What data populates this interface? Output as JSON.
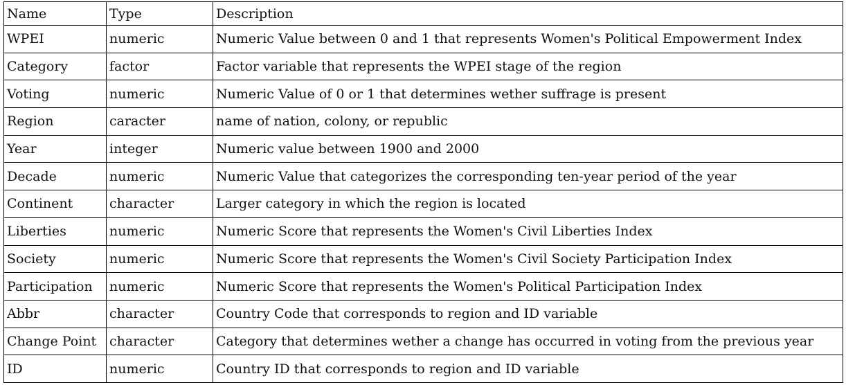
{
  "table": {
    "headers": [
      "Name",
      "Type",
      "Description"
    ],
    "rows": [
      [
        "WPEI",
        "numeric",
        "Numeric Value between 0 and 1 that represents Women's Political Empowerment Index"
      ],
      [
        "Category",
        "factor",
        "Factor variable that represents the WPEI stage of the region"
      ],
      [
        "Voting",
        "numeric",
        "Numeric Value of 0 or 1 that determines wether suffrage is present"
      ],
      [
        "Region",
        "caracter",
        "name of nation, colony, or republic"
      ],
      [
        "Year",
        "integer",
        "Numeric value between 1900 and 2000"
      ],
      [
        "Decade",
        "numeric",
        "Numeric Value that categorizes the corresponding ten-year period of the year"
      ],
      [
        "Continent",
        "character",
        "Larger category in which the region is located"
      ],
      [
        "Liberties",
        "numeric",
        "Numeric Score that represents the Women's Civil Liberties Index"
      ],
      [
        "Society",
        "numeric",
        "Numeric Score that represents the Women's Civil Society Participation Index"
      ],
      [
        "Participation",
        "numeric",
        "Numeric Score that represents the Women's Political Participation Index"
      ],
      [
        "Abbr",
        "character",
        "Country Code that corresponds to region and ID variable"
      ],
      [
        "Change Point",
        "character",
        "Category that determines wether a change has occurred in voting from the previous year"
      ],
      [
        "ID",
        "numeric",
        "Country ID that corresponds to region and ID variable"
      ]
    ]
  }
}
